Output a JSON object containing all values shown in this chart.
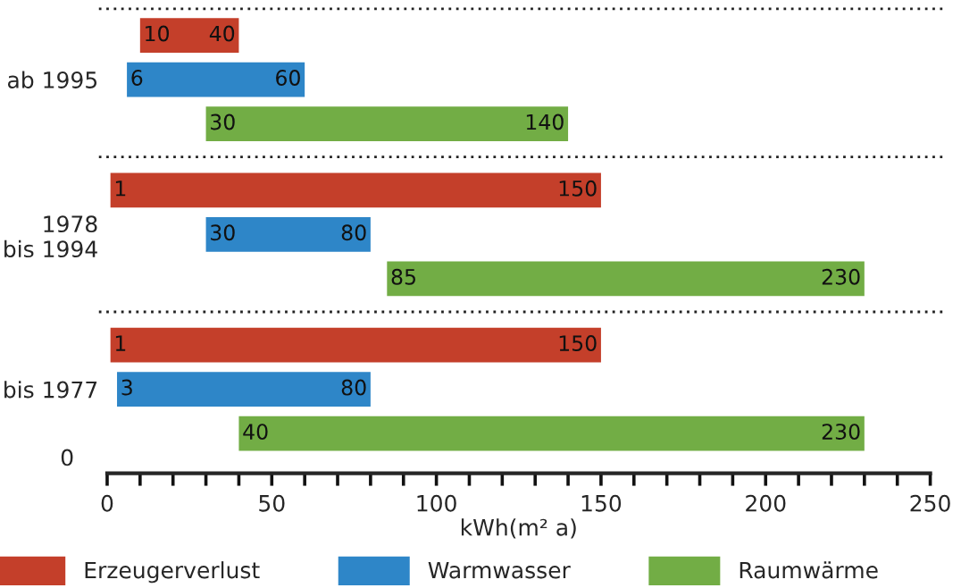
{
  "chart_data": {
    "type": "bar",
    "orientation": "horizontal",
    "xlabel": "kWh(m² a)",
    "categories": [
      null,
      "ab 1995",
      null,
      null,
      "1978\nbis 1994",
      null,
      null,
      "bis 1977",
      null
    ],
    "series": [
      {
        "name": "Erzeugerverlust",
        "color": "#c43f2a",
        "base": [
          10,
          null,
          null,
          1,
          null,
          null,
          1,
          null,
          null
        ],
        "values": [
          30,
          null,
          null,
          149,
          null,
          null,
          149,
          null,
          null
        ],
        "value_labels": [
          [
            "10",
            "40"
          ],
          null,
          null,
          [
            "1",
            "150"
          ],
          null,
          null,
          [
            "1",
            "150"
          ],
          null,
          null
        ]
      },
      {
        "name": "Warmwasser",
        "color": "#2e86c8",
        "base": [
          null,
          6,
          null,
          null,
          30,
          null,
          null,
          3,
          null
        ],
        "values": [
          null,
          54,
          null,
          null,
          50,
          null,
          null,
          77,
          null
        ],
        "value_labels": [
          null,
          [
            "6",
            "60"
          ],
          null,
          null,
          [
            "30",
            "80"
          ],
          null,
          null,
          [
            "3",
            "80"
          ],
          null
        ]
      },
      {
        "name": "Raumwärme",
        "color": "#72ad45",
        "base": [
          null,
          null,
          30,
          null,
          null,
          85,
          null,
          null,
          40
        ],
        "values": [
          null,
          null,
          110,
          null,
          null,
          145,
          null,
          null,
          190
        ],
        "value_labels": [
          null,
          null,
          [
            "30",
            "140"
          ],
          null,
          null,
          [
            "85",
            "230"
          ],
          null,
          null,
          [
            "40",
            "230"
          ]
        ]
      }
    ],
    "xlim": [
      0,
      250
    ],
    "xticks": [
      0,
      {
        "value": 10,
        "label": null
      },
      {
        "value": 20,
        "label": null
      },
      {
        "value": 30,
        "label": null
      },
      {
        "value": 40,
        "label": null
      },
      50,
      {
        "value": 60,
        "label": null
      },
      {
        "value": 70,
        "label": null
      },
      {
        "value": 80,
        "label": null
      },
      {
        "value": 90,
        "label": null
      },
      100,
      {
        "value": 110,
        "label": null
      },
      {
        "value": 120,
        "label": null
      },
      {
        "value": 130,
        "label": null
      },
      {
        "value": 140,
        "label": null
      },
      150,
      {
        "value": 160,
        "label": null
      },
      {
        "value": 170,
        "label": null
      },
      {
        "value": 180,
        "label": null
      },
      {
        "value": 190,
        "label": null
      },
      200,
      {
        "value": 210,
        "label": null
      },
      {
        "value": 220,
        "label": null
      },
      {
        "value": 230,
        "label": null
      },
      {
        "value": 240,
        "label": null
      },
      250
    ],
    "annotations": [
      "0"
    ],
    "grid": false,
    "legend": "bottom"
  }
}
